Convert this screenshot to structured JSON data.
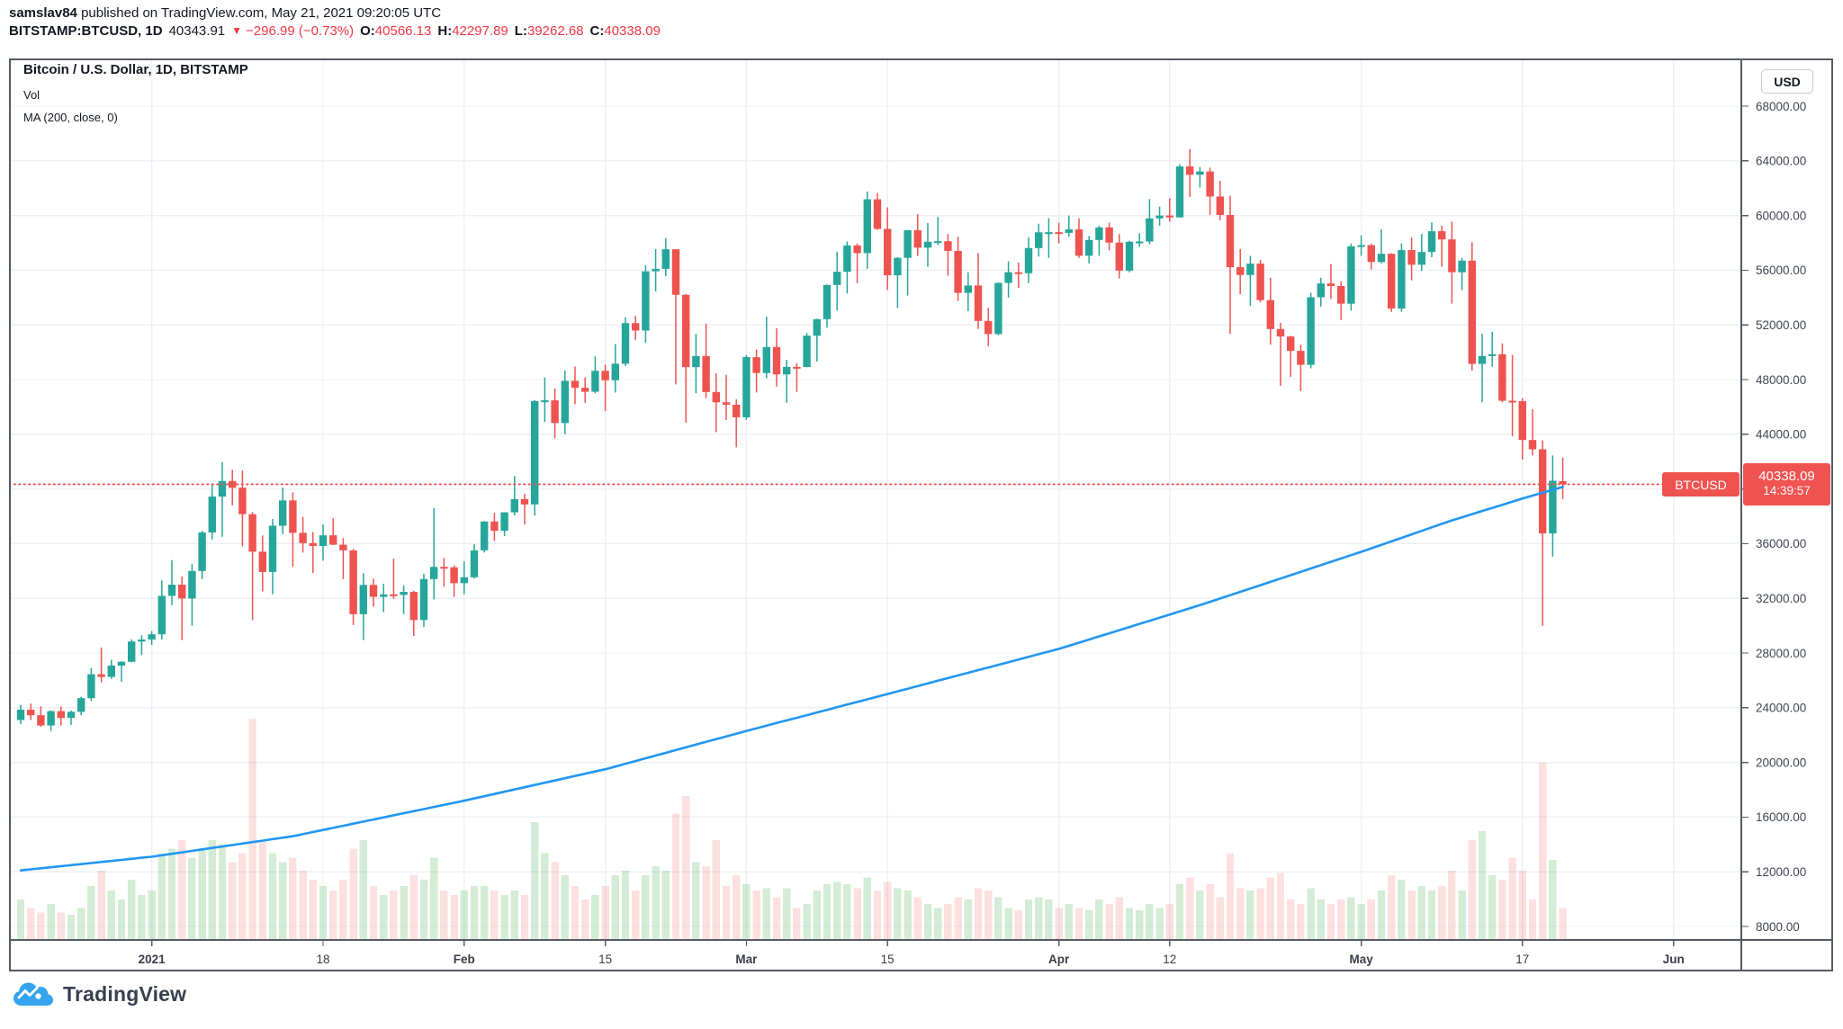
{
  "header": {
    "author": "samslav84",
    "published": " published on TradingView.com, May 21, 2021 09:20:05 UTC",
    "symbol": "BITSTAMP:BTCUSD, 1D",
    "last": "40343.91",
    "arrow": "▼",
    "change": "−296.99 (−0.73%)",
    "o_label": "O:",
    "o_value": "40566.13",
    "h_label": "H:",
    "h_value": "42297.89",
    "l_label": "L:",
    "l_value": "39262.68",
    "c_label": "C:",
    "c_value": "40338.09"
  },
  "chart": {
    "legend_title": "Bitcoin / U.S. Dollar, 1D, BITSTAMP",
    "legend_vol": "Vol",
    "legend_ma": "MA (200, close, 0)",
    "currency_button": "USD",
    "symbol_tag": "BTCUSD",
    "price_tag": "40338.09",
    "countdown": "14:39:57"
  },
  "footer": {
    "brand": "TradingView",
    "cloud_icon_color": "#35a3ee"
  },
  "colors": {
    "up": "#26a69a",
    "down": "#ef5350",
    "vol_up": "rgba(76,175,80,0.24)",
    "vol_down": "rgba(239,83,80,0.18)",
    "ma_line": "#2196f3",
    "grid": "#edf0f7",
    "border": "#555a64",
    "axis_text": "#3f4551",
    "price_line": "#ef5350",
    "header_red": "#f23645",
    "text_dark": "#131722"
  },
  "chart_data": {
    "type": "candlestick",
    "title": "Bitcoin / U.S. Dollar, 1D, BITSTAMP",
    "start_date": "2020-12-19",
    "interval": "1D",
    "price_line_value": 40338.09,
    "ylim": [
      8000,
      68000
    ],
    "price_ticks": [
      68000,
      64000,
      60000,
      56000,
      52000,
      48000,
      44000,
      40000,
      36000,
      32000,
      28000,
      24000,
      20000,
      16000,
      12000,
      8000
    ],
    "time_ticks": [
      {
        "label": "2021",
        "day": 13,
        "b": 1
      },
      {
        "label": "18",
        "day": 30,
        "b": 0
      },
      {
        "label": "Feb",
        "day": 44,
        "b": 1
      },
      {
        "label": "15",
        "day": 58,
        "b": 0
      },
      {
        "label": "Mar",
        "day": 72,
        "b": 1
      },
      {
        "label": "15",
        "day": 86,
        "b": 0
      },
      {
        "label": "Apr",
        "day": 103,
        "b": 1
      },
      {
        "label": "12",
        "day": 114,
        "b": 0
      },
      {
        "label": "May",
        "day": 133,
        "b": 1
      },
      {
        "label": "17",
        "day": 149,
        "b": 0
      },
      {
        "label": "Jun",
        "day": 164,
        "b": 1
      }
    ],
    "ohlc": [
      [
        23100,
        24200,
        22800,
        23850
      ],
      [
        23850,
        24300,
        23100,
        23450
      ],
      [
        23450,
        24100,
        22600,
        22700
      ],
      [
        22700,
        23800,
        22300,
        23750
      ],
      [
        23750,
        24100,
        22700,
        23250
      ],
      [
        23250,
        23800,
        22750,
        23700
      ],
      [
        23700,
        24800,
        23450,
        24700
      ],
      [
        24700,
        26900,
        24500,
        26450
      ],
      [
        26450,
        28400,
        25850,
        26250
      ],
      [
        26250,
        27500,
        26100,
        27080
      ],
      [
        27080,
        27400,
        25900,
        27360
      ],
      [
        27360,
        29000,
        27320,
        28840
      ],
      [
        28840,
        29300,
        27850,
        28990
      ],
      [
        28990,
        29600,
        28600,
        29370
      ],
      [
        29370,
        33300,
        29000,
        32180
      ],
      [
        32180,
        34800,
        31500,
        33000
      ],
      [
        33000,
        33600,
        28950,
        31990
      ],
      [
        31990,
        34500,
        30000,
        34000
      ],
      [
        34000,
        36950,
        33400,
        36820
      ],
      [
        36820,
        40400,
        36300,
        39440
      ],
      [
        39440,
        41950,
        36500,
        40580
      ],
      [
        40580,
        41400,
        38800,
        40090
      ],
      [
        40090,
        41350,
        35800,
        38150
      ],
      [
        38150,
        38300,
        30400,
        35410
      ],
      [
        35410,
        36600,
        32500,
        33930
      ],
      [
        33930,
        37800,
        32300,
        37310
      ],
      [
        37310,
        40100,
        36700,
        39160
      ],
      [
        39160,
        39750,
        34300,
        36790
      ],
      [
        36790,
        37950,
        35350,
        36040
      ],
      [
        36040,
        36850,
        33850,
        35830
      ],
      [
        35830,
        37400,
        34750,
        36610
      ],
      [
        36610,
        37850,
        35900,
        35920
      ],
      [
        35920,
        36400,
        33400,
        35510
      ],
      [
        35510,
        35600,
        30050,
        30840
      ],
      [
        30840,
        33830,
        28950,
        32980
      ],
      [
        32980,
        33450,
        31390,
        32110
      ],
      [
        32110,
        33070,
        31000,
        32290
      ],
      [
        32290,
        34900,
        31950,
        32250
      ],
      [
        32250,
        32950,
        30850,
        32470
      ],
      [
        32470,
        32550,
        29250,
        30410
      ],
      [
        30410,
        33800,
        29900,
        33410
      ],
      [
        33410,
        38600,
        31920,
        34300
      ],
      [
        34300,
        34950,
        32850,
        34270
      ],
      [
        34270,
        34400,
        32100,
        33110
      ],
      [
        33110,
        34700,
        32300,
        33540
      ],
      [
        33540,
        35950,
        33450,
        35510
      ],
      [
        35510,
        37650,
        35350,
        37620
      ],
      [
        37620,
        38250,
        36200,
        36940
      ],
      [
        36940,
        38300,
        36550,
        38290
      ],
      [
        38290,
        40950,
        38050,
        39250
      ],
      [
        39250,
        39650,
        37400,
        38870
      ],
      [
        38870,
        46500,
        38050,
        46430
      ],
      [
        46430,
        48150,
        44900,
        46480
      ],
      [
        46480,
        47350,
        43700,
        44820
      ],
      [
        44820,
        48650,
        44000,
        47910
      ],
      [
        47910,
        48950,
        46200,
        47400
      ],
      [
        47400,
        48150,
        46300,
        47110
      ],
      [
        47110,
        49700,
        47000,
        48640
      ],
      [
        48640,
        49100,
        45700,
        47950
      ],
      [
        47950,
        50600,
        47050,
        49160
      ],
      [
        49160,
        52550,
        49000,
        52130
      ],
      [
        52130,
        52650,
        50900,
        51590
      ],
      [
        51590,
        56350,
        50700,
        55920
      ],
      [
        55920,
        57550,
        54450,
        56100
      ],
      [
        56100,
        58350,
        55550,
        57530
      ],
      [
        57530,
        57550,
        47650,
        54200
      ],
      [
        54200,
        54250,
        44850,
        48910
      ],
      [
        48910,
        51350,
        47000,
        49720
      ],
      [
        49720,
        52100,
        46650,
        47090
      ],
      [
        47090,
        48450,
        44150,
        46340
      ],
      [
        46340,
        48350,
        45050,
        46160
      ],
      [
        46160,
        46550,
        43050,
        45240
      ],
      [
        45240,
        49800,
        45050,
        49640
      ],
      [
        49640,
        50200,
        47050,
        48480
      ],
      [
        48480,
        52600,
        48100,
        50380
      ],
      [
        50380,
        51750,
        47500,
        48380
      ],
      [
        48380,
        49450,
        46300,
        48930
      ],
      [
        48930,
        49200,
        47100,
        48920
      ],
      [
        48920,
        51400,
        48900,
        51210
      ],
      [
        51210,
        52450,
        49320,
        52420
      ],
      [
        52420,
        54950,
        51800,
        54920
      ],
      [
        54920,
        57350,
        53050,
        55890
      ],
      [
        55890,
        58100,
        54300,
        57810
      ],
      [
        57810,
        57950,
        55050,
        57250
      ],
      [
        57250,
        61750,
        56100,
        61190
      ],
      [
        61190,
        61650,
        58950,
        59020
      ],
      [
        59020,
        60600,
        54550,
        55630
      ],
      [
        55630,
        56950,
        53250,
        56900
      ],
      [
        56900,
        58950,
        54150,
        58920
      ],
      [
        58920,
        60100,
        57050,
        57650
      ],
      [
        57650,
        59450,
        56250,
        58080
      ],
      [
        58080,
        59900,
        57850,
        58120
      ],
      [
        58120,
        58650,
        55600,
        57410
      ],
      [
        57410,
        58450,
        53750,
        54340
      ],
      [
        54340,
        55850,
        53000,
        54880
      ],
      [
        54880,
        57250,
        51700,
        52290
      ],
      [
        52290,
        53250,
        50450,
        51330
      ],
      [
        51330,
        55100,
        51250,
        55070
      ],
      [
        55070,
        56650,
        54000,
        55850
      ],
      [
        55850,
        56550,
        54700,
        55780
      ],
      [
        55780,
        58400,
        55050,
        57620
      ],
      [
        57620,
        59400,
        57000,
        58770
      ],
      [
        58770,
        59800,
        56900,
        58780
      ],
      [
        58780,
        59470,
        57950,
        58730
      ],
      [
        58730,
        60000,
        58450,
        58990
      ],
      [
        58990,
        59800,
        56900,
        57060
      ],
      [
        57060,
        58500,
        56500,
        58210
      ],
      [
        58210,
        59250,
        57050,
        59130
      ],
      [
        59130,
        59480,
        57450,
        58020
      ],
      [
        58020,
        58650,
        55400,
        55970
      ],
      [
        55970,
        58150,
        55850,
        58080
      ],
      [
        58080,
        58700,
        57700,
        58100
      ],
      [
        58100,
        61200,
        57900,
        59790
      ],
      [
        59790,
        60650,
        59250,
        60000
      ],
      [
        60000,
        61250,
        59550,
        59860
      ],
      [
        59860,
        63750,
        59850,
        63590
      ],
      [
        63590,
        64850,
        61350,
        62980
      ],
      [
        62980,
        63550,
        62050,
        63220
      ],
      [
        63220,
        63500,
        60050,
        61390
      ],
      [
        61390,
        62550,
        59650,
        60040
      ],
      [
        60040,
        61450,
        51350,
        56220
      ],
      [
        56220,
        57550,
        54250,
        55650
      ],
      [
        55650,
        57050,
        53400,
        56480
      ],
      [
        56480,
        56750,
        53650,
        53810
      ],
      [
        53810,
        55450,
        50550,
        51700
      ],
      [
        51700,
        52150,
        47550,
        51150
      ],
      [
        51150,
        51200,
        48200,
        50100
      ],
      [
        50100,
        50550,
        47150,
        49080
      ],
      [
        49080,
        54350,
        48820,
        54020
      ],
      [
        54020,
        55450,
        53350,
        55030
      ],
      [
        55030,
        56450,
        53900,
        54840
      ],
      [
        54840,
        55200,
        52350,
        53550
      ],
      [
        53550,
        57950,
        53050,
        57750
      ],
      [
        57750,
        58550,
        57050,
        57830
      ],
      [
        57830,
        57950,
        56050,
        56600
      ],
      [
        56600,
        58990,
        56500,
        57200
      ],
      [
        57200,
        57250,
        52950,
        53200
      ],
      [
        53200,
        57950,
        52950,
        57470
      ],
      [
        57470,
        58400,
        55250,
        56400
      ],
      [
        56400,
        58650,
        55950,
        57330
      ],
      [
        57330,
        59500,
        56950,
        58850
      ],
      [
        58850,
        59250,
        56250,
        58250
      ],
      [
        58250,
        59550,
        53550,
        55850
      ],
      [
        55850,
        56900,
        54550,
        56700
      ],
      [
        56700,
        58050,
        48650,
        49150
      ],
      [
        49150,
        51350,
        46350,
        49720
      ],
      [
        49720,
        51500,
        48950,
        49850
      ],
      [
        49850,
        50650,
        46350,
        46450
      ],
      [
        46450,
        49800,
        43850,
        46420
      ],
      [
        46420,
        46650,
        42150,
        43580
      ],
      [
        43580,
        45850,
        42450,
        42900
      ],
      [
        42900,
        43550,
        30000,
        36750
      ],
      [
        36750,
        42450,
        35050,
        40600
      ],
      [
        40566,
        42297,
        39262,
        40338
      ]
    ],
    "volume": [
      18,
      14,
      12,
      16,
      12,
      11,
      14,
      24,
      31,
      22,
      18,
      27,
      20,
      22,
      39,
      41,
      45,
      37,
      41,
      45,
      43,
      35,
      39,
      100,
      45,
      39,
      35,
      37,
      31,
      27,
      24,
      22,
      27,
      41,
      45,
      24,
      20,
      22,
      24,
      29,
      27,
      37,
      22,
      20,
      22,
      24,
      24,
      22,
      20,
      22,
      20,
      53,
      39,
      35,
      29,
      24,
      18,
      20,
      24,
      29,
      31,
      22,
      29,
      33,
      31,
      57,
      65,
      35,
      33,
      45,
      24,
      29,
      25,
      22,
      23,
      19,
      23,
      14,
      16,
      22,
      25,
      26,
      25,
      23,
      28,
      22,
      26,
      23,
      22,
      19,
      16,
      14,
      16,
      19,
      18,
      23,
      22,
      19,
      14,
      13,
      18,
      19,
      18,
      14,
      16,
      14,
      13,
      18,
      16,
      19,
      14,
      13,
      16,
      14,
      16,
      25,
      28,
      22,
      25,
      19,
      39,
      23,
      22,
      23,
      28,
      30,
      18,
      16,
      23,
      18,
      16,
      18,
      19,
      16,
      18,
      22,
      29,
      27,
      22,
      24,
      22,
      24,
      31,
      22,
      45,
      49,
      29,
      27,
      37,
      31,
      18,
      80,
      36,
      14
    ],
    "ma200_anchors": [
      [
        0,
        12100
      ],
      [
        13,
        13100
      ],
      [
        27,
        14600
      ],
      [
        44,
        17200
      ],
      [
        58,
        19500
      ],
      [
        72,
        22300
      ],
      [
        86,
        25000
      ],
      [
        103,
        28300
      ],
      [
        117,
        31500
      ],
      [
        133,
        35400
      ],
      [
        142,
        37700
      ],
      [
        149,
        39300
      ],
      [
        153,
        40150
      ]
    ]
  }
}
